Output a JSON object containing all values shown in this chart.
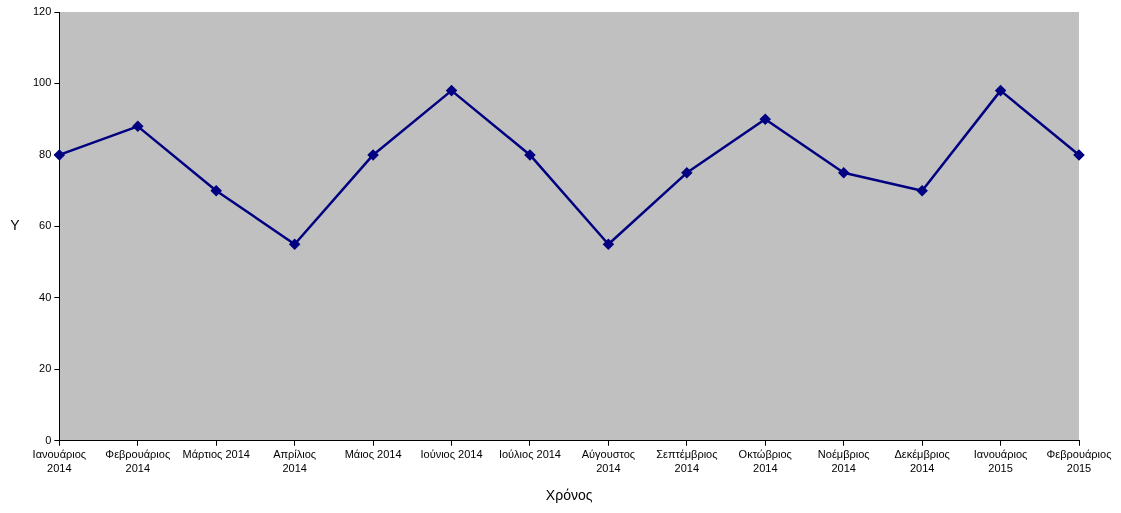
{
  "chart_data": {
    "type": "line",
    "xlabel": "Χρόνος",
    "ylabel": "Y",
    "categories": [
      "Ιανουάριος 2014",
      "Φεβρουάριος 2014",
      "Μάρτιος 2014",
      "Απρίλιος 2014",
      "Μάιος 2014",
      "Ιούνιος 2014",
      "Ιούλιος 2014",
      "Αύγουστος 2014",
      "Σεπτέμβριος 2014",
      "Οκτώβριος 2014",
      "Νοέμβριος 2014",
      "Δεκέμβριος 2014",
      "Ιανουάριος 2015",
      "Φεβρουάριος 2015"
    ],
    "series": [
      {
        "color": "#000080",
        "values": [
          80,
          88,
          70,
          55,
          80,
          98,
          80,
          55,
          75,
          90,
          75,
          70,
          98,
          80
        ]
      }
    ],
    "ylim": [
      0,
      120
    ],
    "yticks": [
      0,
      20,
      40,
      60,
      80,
      100,
      120
    ],
    "grid": false,
    "legend": false,
    "marker": "diamond",
    "line_style": "solid"
  }
}
